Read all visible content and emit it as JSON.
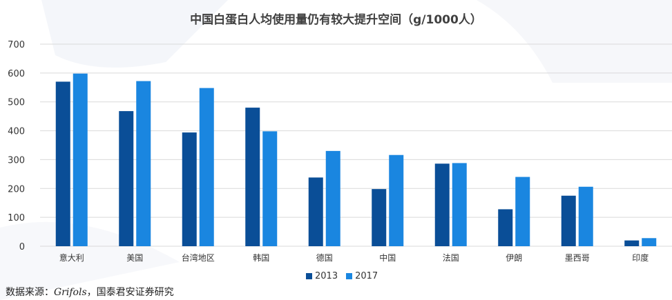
{
  "colors": {
    "series_2013": "#0a4e97",
    "series_2017": "#1a86e0",
    "grid": "#d9d9d9",
    "axis_text": "#333333"
  },
  "chart_data": {
    "type": "bar",
    "title": "中国白蛋白人均使用量仍有较大提升空间（g/1000人）",
    "categories": [
      "意大利",
      "美国",
      "台湾地区",
      "韩国",
      "德国",
      "中国",
      "法国",
      "伊朗",
      "墨西哥",
      "印度"
    ],
    "series": [
      {
        "name": "2013",
        "values": [
          570,
          468,
          394,
          480,
          238,
          198,
          286,
          128,
          175,
          20
        ]
      },
      {
        "name": "2017",
        "values": [
          598,
          572,
          548,
          398,
          330,
          316,
          288,
          240,
          206,
          28
        ]
      }
    ],
    "ylim": [
      0,
      700
    ],
    "yticks": [
      "0",
      "100",
      "200",
      "300",
      "400",
      "500",
      "600",
      "700"
    ],
    "grid": true,
    "legend": "bottom"
  },
  "source": {
    "prefix": "数据来源：",
    "italic": "Grifols",
    "suffix": "，国泰君安证券研究"
  }
}
